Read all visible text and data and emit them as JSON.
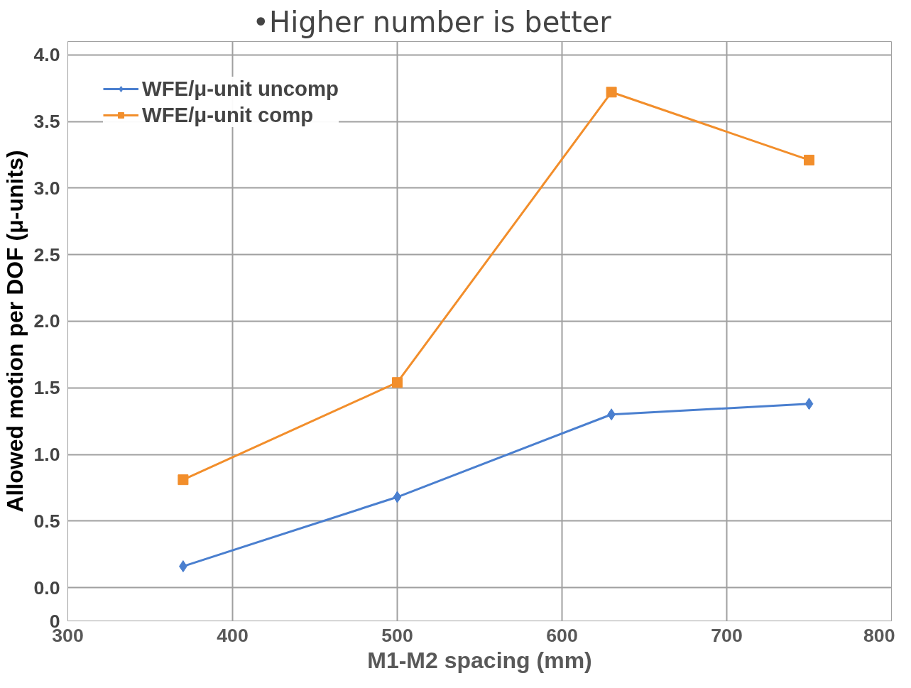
{
  "chart_data": {
    "type": "line",
    "title": "•Higher number is better",
    "xlabel": "M1-M2 spacing (mm)",
    "ylabel": "Allowed motion per DOF (μ-units)",
    "x": [
      370,
      500,
      630,
      750
    ],
    "series": [
      {
        "name": "WFE/μ-unit uncomp",
        "color": "#4a7fcf",
        "marker": "diamond",
        "values": [
          0.16,
          0.68,
          1.3,
          1.38
        ]
      },
      {
        "name": "WFE/μ-unit comp",
        "color": "#f28e2b",
        "marker": "square",
        "values": [
          0.81,
          1.54,
          3.72,
          3.21
        ]
      }
    ],
    "xlim": [
      300,
      800
    ],
    "xticks": [
      300,
      400,
      500,
      600,
      700,
      800
    ],
    "ylim": [
      -0.25,
      4.1
    ],
    "yticks": [
      {
        "value": -0.25,
        "label": "0"
      },
      {
        "value": 0,
        "label": "0.0"
      },
      {
        "value": 0.5,
        "label": "0.5"
      },
      {
        "value": 1,
        "label": "1.0"
      },
      {
        "value": 1.5,
        "label": "1.5"
      },
      {
        "value": 2,
        "label": "2.0"
      },
      {
        "value": 2.5,
        "label": "2.5"
      },
      {
        "value": 3,
        "label": "3.0"
      },
      {
        "value": 3.5,
        "label": "3.5"
      },
      {
        "value": 4,
        "label": "4.0"
      }
    ],
    "grid": true,
    "legend": "top left",
    "line_style": "solid"
  }
}
